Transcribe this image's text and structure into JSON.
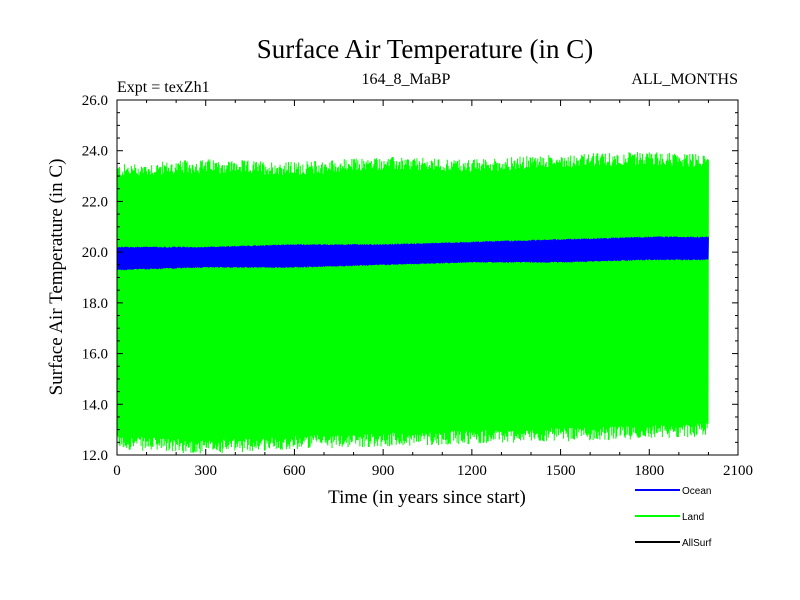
{
  "colors": {
    "ocean": "#0000ff",
    "land": "#00ff00",
    "allsurf": "#000000",
    "axis": "#000000",
    "background": "#ffffff"
  },
  "chart_data": {
    "type": "line",
    "title": "Surface Air Temperature (in C)",
    "experiment_label": "Expt = texZh1",
    "subtitle_center": "164_8_MaBP",
    "subtitle_right": "ALL_MONTHS",
    "xlabel": "Time (in years since start)",
    "ylabel": "Surface Air Temperature (in C)",
    "xlim": [
      0,
      2100
    ],
    "ylim": [
      12.0,
      26.0
    ],
    "xticks": [
      0,
      300,
      600,
      900,
      1200,
      1500,
      1800,
      2100
    ],
    "xtick_labels": [
      "0",
      "300",
      "600",
      "900",
      "1200",
      "1500",
      "1800",
      "2100"
    ],
    "yticks": [
      12.0,
      14.0,
      16.0,
      18.0,
      20.0,
      22.0,
      24.0,
      26.0
    ],
    "ytick_labels": [
      "12.0",
      "14.0",
      "16.0",
      "18.0",
      "20.0",
      "22.0",
      "24.0",
      "26.0"
    ],
    "x_range_years": [
      0,
      2000
    ],
    "series": [
      {
        "name": "Land",
        "color": "#00ff00",
        "envelope": {
          "x": [
            0,
            300,
            600,
            900,
            1200,
            1500,
            1800,
            2000
          ],
          "min": [
            12.5,
            12.3,
            12.5,
            12.6,
            12.7,
            12.8,
            12.9,
            13.0
          ],
          "max": [
            23.2,
            23.4,
            23.3,
            23.5,
            23.4,
            23.6,
            23.7,
            23.6
          ]
        }
      },
      {
        "name": "Ocean",
        "color": "#0000ff",
        "envelope": {
          "x": [
            0,
            300,
            600,
            900,
            1200,
            1500,
            1800,
            2000
          ],
          "min": [
            19.3,
            19.4,
            19.4,
            19.5,
            19.6,
            19.6,
            19.7,
            19.7
          ],
          "max": [
            20.2,
            20.2,
            20.3,
            20.3,
            20.4,
            20.5,
            20.6,
            20.6
          ]
        }
      },
      {
        "name": "AllSurf",
        "color": "#000000",
        "envelope": null
      }
    ],
    "legend": [
      "Ocean",
      "Land",
      "AllSurf"
    ],
    "legend_position": "bottom-right"
  }
}
